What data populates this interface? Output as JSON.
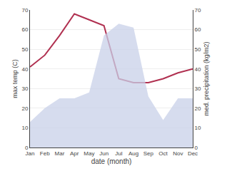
{
  "chart_data": {
    "type": "line",
    "categories": [
      "Jan",
      "Feb",
      "Mar",
      "Apr",
      "May",
      "Jun",
      "Jul",
      "Aug",
      "Sep",
      "Oct",
      "Nov",
      "Dec"
    ],
    "series": [
      {
        "type": "area",
        "axis": "y2",
        "color": "#c8d0e8",
        "values": [
          13,
          20,
          25,
          25,
          28,
          57,
          63,
          61,
          26,
          14,
          25,
          25
        ]
      },
      {
        "type": "line",
        "color": "#b03050",
        "values": [
          41,
          47,
          57,
          68,
          65,
          62,
          35,
          33,
          33,
          35,
          38,
          40
        ]
      }
    ],
    "xlabel": "date (month)",
    "ylabel": "max temp (C)",
    "y2label": "med. precipitation (kg/m2)",
    "ylim": [
      0,
      70
    ],
    "yticks": [
      0,
      10,
      20,
      30,
      40,
      50,
      60,
      70
    ],
    "y2lim": [
      0,
      70
    ],
    "y2ticks": [
      0,
      10,
      20,
      30,
      40,
      50,
      60,
      70
    ],
    "grid": true
  }
}
